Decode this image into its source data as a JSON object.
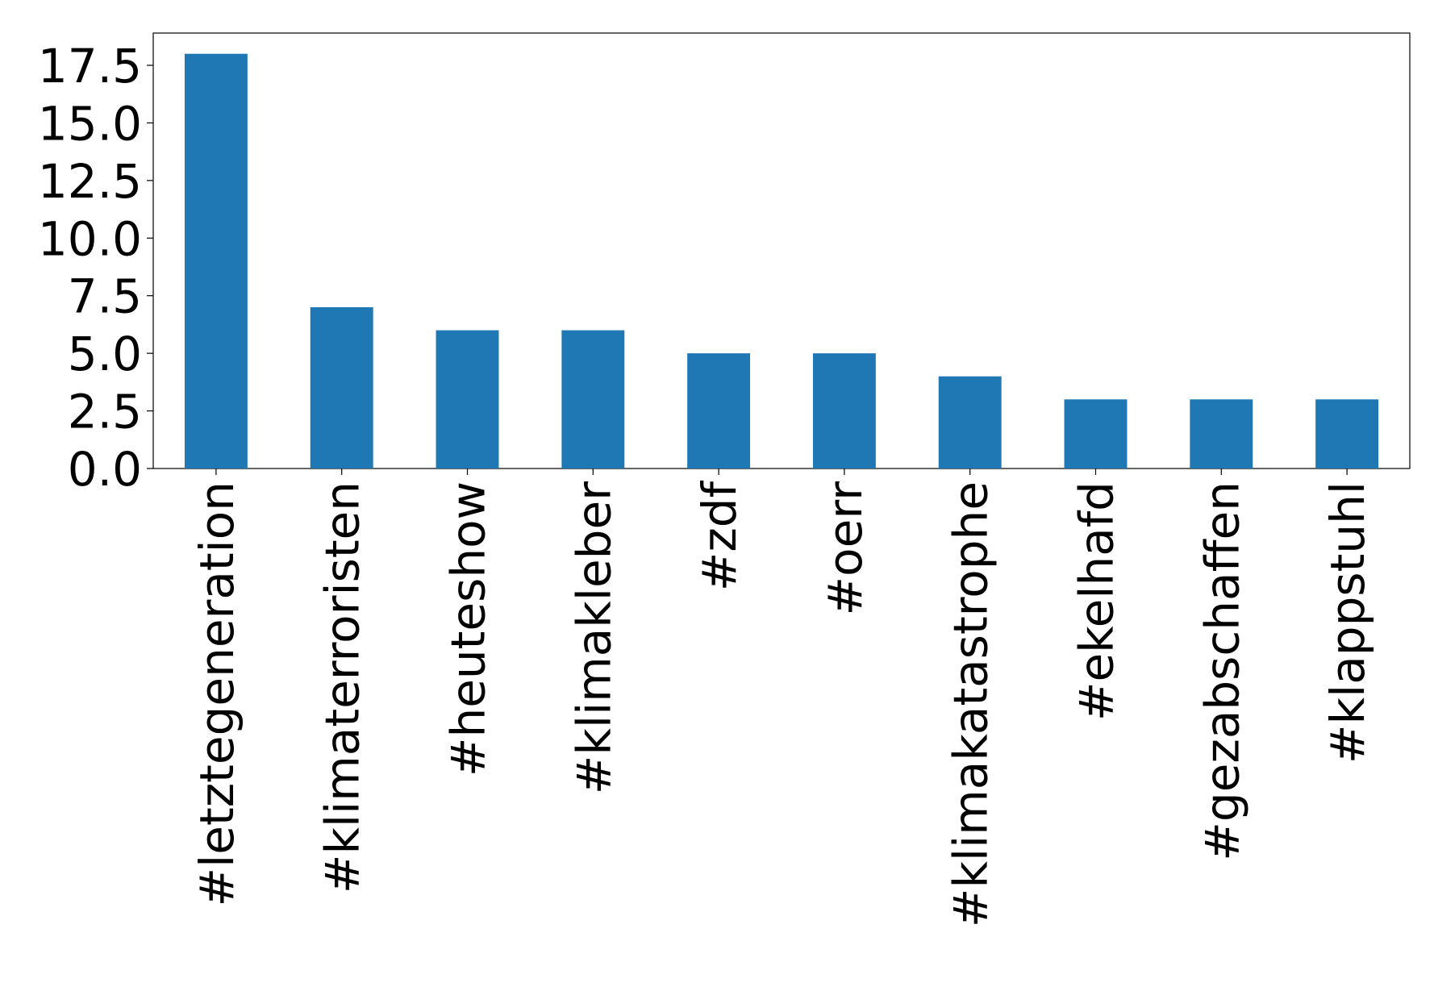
{
  "chart_data": {
    "type": "bar",
    "categories": [
      "#letztegeneration",
      "#klimaterroristen",
      "#heuteshow",
      "#klimakleber",
      "#zdf",
      "#oerr",
      "#klimakatastrophe",
      "#ekelhafd",
      "#gezabschaffen",
      "#klappstuhl"
    ],
    "values": [
      18,
      7,
      6,
      6,
      5,
      5,
      4,
      3,
      3,
      3
    ],
    "color": "#1f77b4",
    "ylim": [
      0,
      18.9
    ],
    "yticks": [
      {
        "value": 0,
        "label": "0.0"
      },
      {
        "value": 2.5,
        "label": "2.5"
      },
      {
        "value": 5,
        "label": "5.0"
      },
      {
        "value": 7.5,
        "label": "7.5"
      },
      {
        "value": 10,
        "label": "10.0"
      },
      {
        "value": 12.5,
        "label": "12.5"
      },
      {
        "value": 15,
        "label": "15.0"
      },
      {
        "value": 17.5,
        "label": "17.5"
      }
    ],
    "grid": false
  }
}
